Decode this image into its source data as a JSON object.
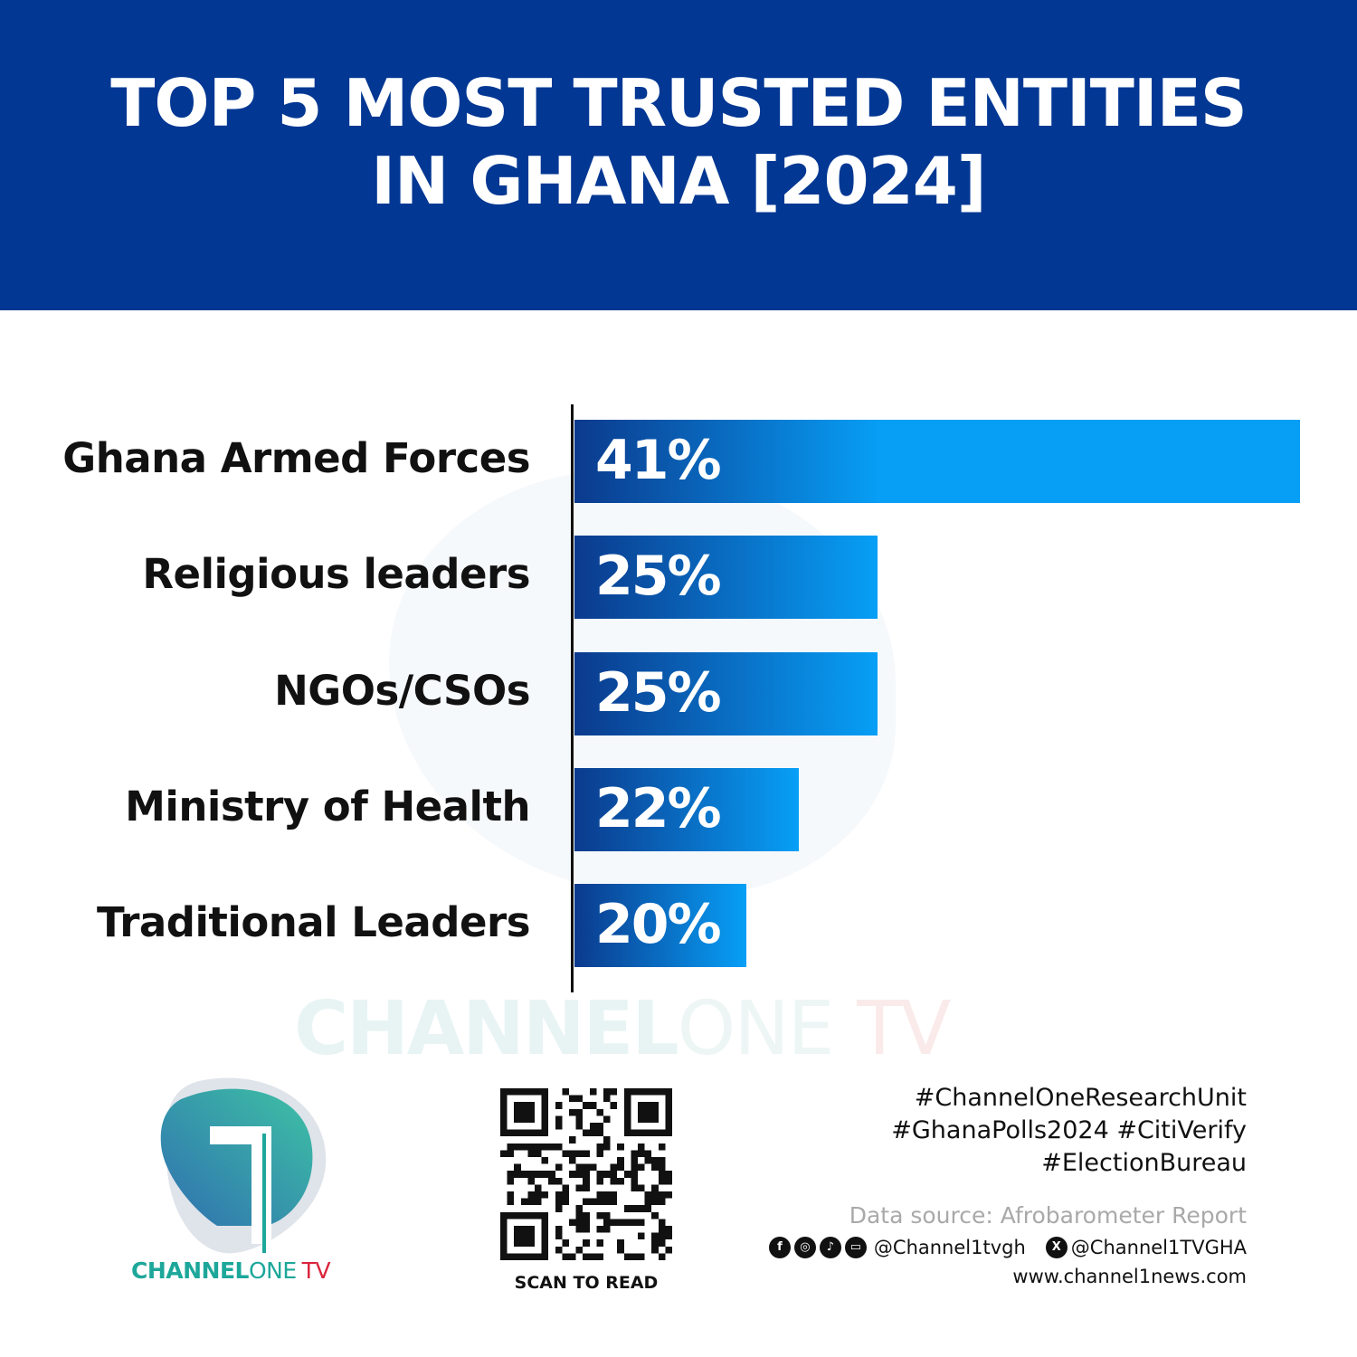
{
  "chart_data": {
    "type": "bar",
    "orientation": "horizontal",
    "title": "TOP 5 MOST TRUSTED ENTITIES IN GHANA [2024]",
    "title_lines": [
      "TOP 5 MOST TRUSTED ENTITIES",
      "IN GHANA [2024]"
    ],
    "categories": [
      "Ghana Armed Forces",
      "Religious leaders",
      "NGOs/CSOs",
      "Ministry of Health",
      "Traditional Leaders"
    ],
    "values": [
      41,
      25,
      25,
      22,
      20
    ],
    "data_labels": [
      "41%",
      "25%",
      "25%",
      "22%",
      "20%"
    ],
    "xlim": [
      13.5,
      41
    ],
    "grid": false,
    "bar_gradient": [
      "#0b3a8d",
      "#079ff6"
    ]
  },
  "colors": {
    "header_bg": "#023894",
    "brand_teal": "#1da79a",
    "brand_red": "#d9243a"
  },
  "watermark": {
    "part1": "CHANNEL",
    "part2": "ONE",
    "part3": "TV"
  },
  "logo": {
    "part1": "CHANNEL",
    "part2": "ONE",
    "part3": "TV"
  },
  "qr": {
    "caption": "SCAN TO READ"
  },
  "footer": {
    "hashtags": [
      "#ChannelOneResearchUnit",
      "#GhanaPolls2024 #CitiVerify",
      "#ElectionBureau"
    ],
    "source": "Data source: Afrobarometer Report",
    "social_icons": [
      "facebook-icon",
      "instagram-icon",
      "tiktok-icon",
      "youtube-icon"
    ],
    "social_handle": "@Channel1tvgh",
    "x_handle": "@Channel1TVGHA",
    "website": "www.channel1news.com"
  }
}
